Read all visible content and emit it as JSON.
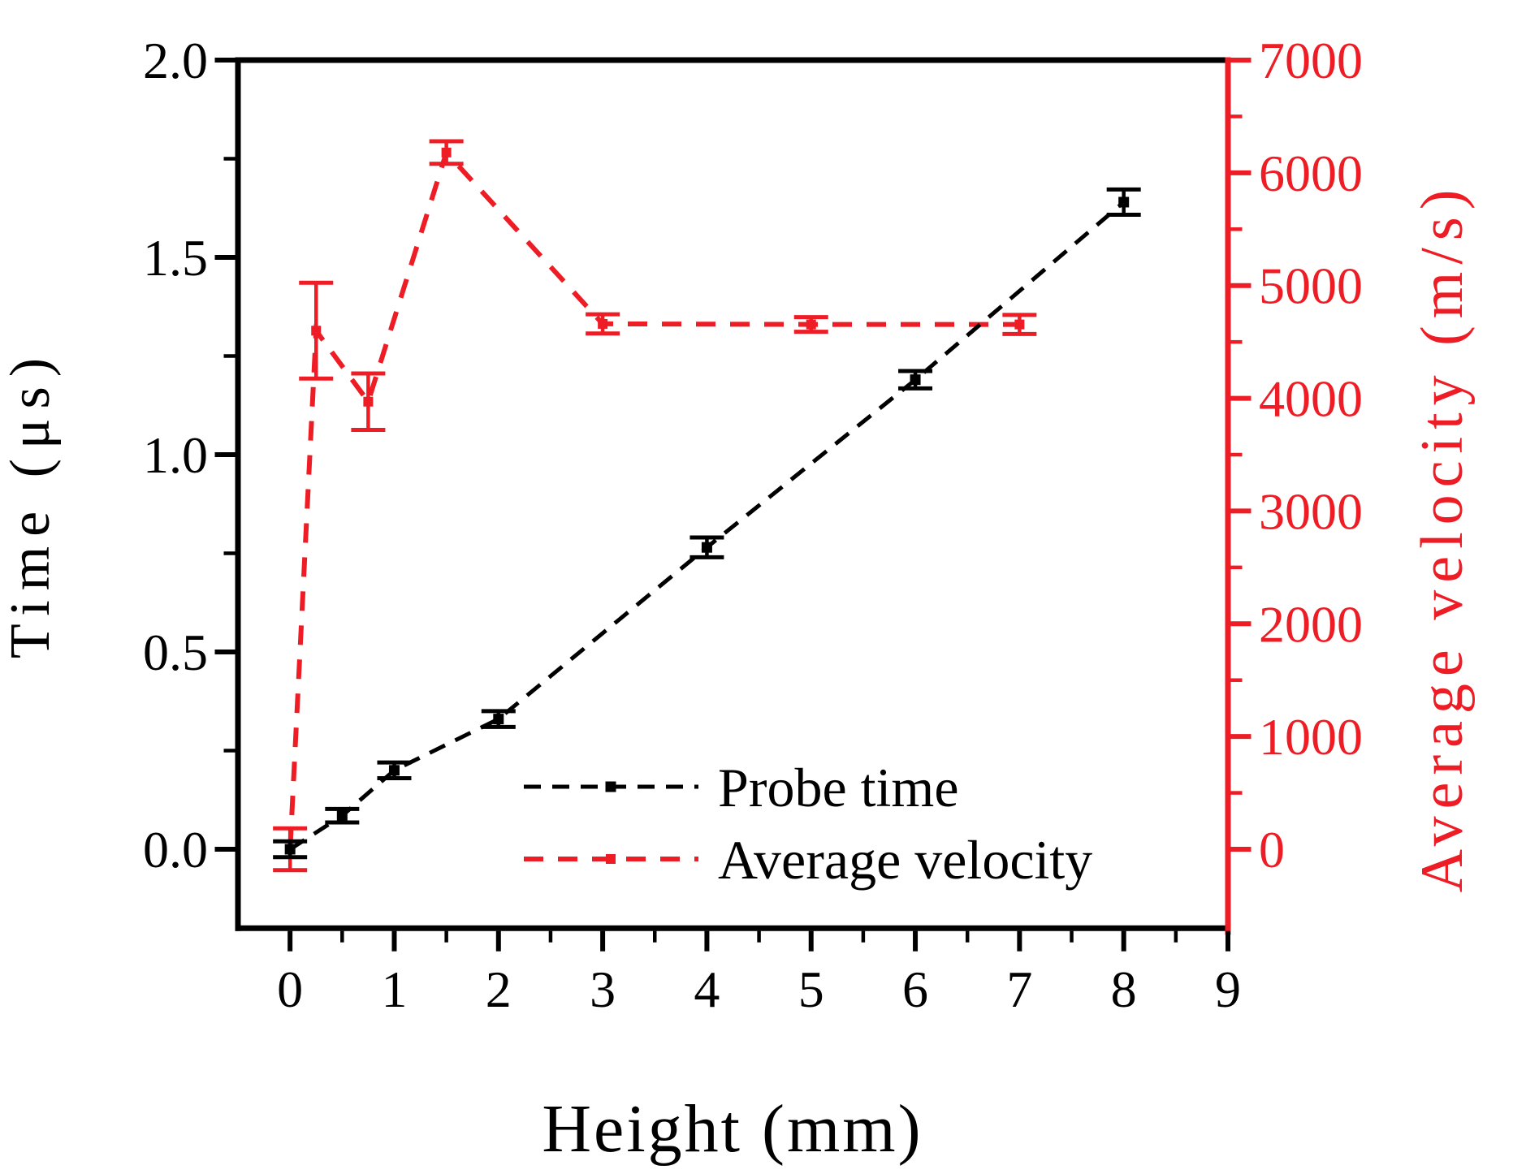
{
  "figure": {
    "background": "#ffffff"
  },
  "chart_data": {
    "type": "line",
    "title": "",
    "xlabel": "Height (mm)",
    "ylabel_left": "Time (μs)",
    "ylabel_right": "Average velocity (m/s)",
    "grid": false,
    "axis_colors": {
      "left": "#000000",
      "bottom": "#000000",
      "right": "#ee1c24"
    },
    "xlim": [
      -0.5,
      9
    ],
    "ylim_left": [
      -0.2,
      2.0
    ],
    "ylim_right": [
      -700,
      7000
    ],
    "x_ticks": {
      "values": [
        0,
        1,
        2,
        3,
        4,
        5,
        6,
        7,
        8,
        9
      ],
      "labels": [
        "0",
        "1",
        "2",
        "3",
        "4",
        "5",
        "6",
        "7",
        "8",
        "9"
      ],
      "minor_values": [
        0.5,
        1.5,
        2.5,
        3.5,
        4.5,
        5.5,
        6.5,
        7.5,
        8.5
      ]
    },
    "y_left_ticks": {
      "values": [
        0.0,
        0.5,
        1.0,
        1.5,
        2.0
      ],
      "labels": [
        "0.0",
        "0.5",
        "1.0",
        "1.5",
        "2.0"
      ],
      "minor_values": [
        0.25,
        0.75,
        1.25,
        1.75
      ]
    },
    "y_right_ticks": {
      "values": [
        0,
        1000,
        2000,
        3000,
        4000,
        5000,
        6000,
        7000
      ],
      "labels": [
        "0",
        "1000",
        "2000",
        "3000",
        "4000",
        "5000",
        "6000",
        "7000"
      ],
      "minor_values": [
        500,
        1500,
        2500,
        3500,
        4500,
        5500,
        6500
      ]
    },
    "series": [
      {
        "name": "Average velocity",
        "yaxis": "right",
        "color": "#ee1c24",
        "linestyle": "dashed",
        "dash": "24 18",
        "line_width": 6,
        "marker": "square",
        "marker_size": 12,
        "x": [
          0,
          0.25,
          0.75,
          1.5,
          3,
          5,
          7
        ],
        "y": [
          0,
          4600,
          3970,
          6180,
          4660,
          4655,
          4655
        ],
        "yerr": [
          185,
          425,
          250,
          100,
          85,
          65,
          85
        ]
      },
      {
        "name": "Probe time",
        "yaxis": "left",
        "color": "#000000",
        "linestyle": "dashed",
        "dash": "21 14",
        "line_width": 5,
        "marker": "square",
        "marker_size": 13,
        "x": [
          0,
          0.5,
          1,
          2,
          4,
          6,
          8
        ],
        "y": [
          0.0,
          0.085,
          0.2,
          0.33,
          0.765,
          1.19,
          1.64
        ],
        "yerr": [
          0.02,
          0.017,
          0.02,
          0.02,
          0.025,
          0.022,
          0.032
        ]
      }
    ],
    "legend": {
      "position": "inside-lower-right",
      "items": [
        {
          "label": "Probe time",
          "series": 1
        },
        {
          "label": "Average velocity",
          "series": 0
        }
      ]
    }
  }
}
